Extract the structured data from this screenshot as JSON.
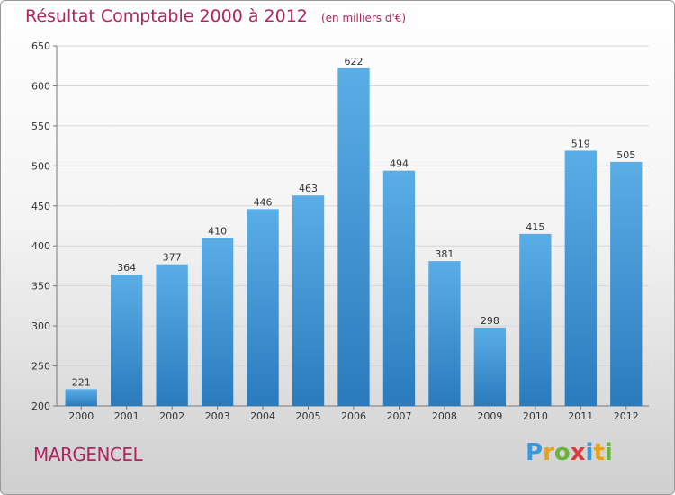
{
  "chart_data": {
    "type": "bar",
    "title": "Résultat Comptable 2000 à 2012",
    "unit_label": "(en milliers d'€)",
    "categories": [
      "2000",
      "2001",
      "2002",
      "2003",
      "2004",
      "2005",
      "2006",
      "2007",
      "2008",
      "2009",
      "2010",
      "2011",
      "2012"
    ],
    "values": [
      221,
      364,
      377,
      410,
      446,
      463,
      622,
      494,
      381,
      298,
      415,
      519,
      505
    ],
    "ylim": [
      200,
      650
    ],
    "yticks": [
      200,
      250,
      300,
      350,
      400,
      450,
      500,
      550,
      600,
      650
    ],
    "xlabel": "",
    "ylabel": "",
    "grid": true,
    "colors": {
      "bar_top": "#5aaee6",
      "bar_bottom": "#2a7bbd",
      "title": "#b0245f"
    }
  },
  "commune": "MARGENCEL",
  "logo": {
    "letters": [
      "P",
      "r",
      "o",
      "x",
      "i",
      "t",
      "i"
    ],
    "colors": [
      "#3a9ad9",
      "#e8a21a",
      "#6ab43e",
      "#d93a3a",
      "#3a9ad9",
      "#e8a21a",
      "#6ab43e"
    ]
  }
}
